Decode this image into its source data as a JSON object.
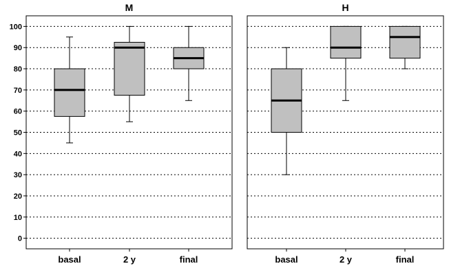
{
  "chart_data": {
    "type": "boxplot",
    "y_ticks": [
      0,
      10,
      20,
      30,
      40,
      50,
      60,
      70,
      80,
      90,
      100
    ],
    "ylim": [
      -5,
      105
    ],
    "grid": "horizontal dotted",
    "box_color": "#c0c0c0",
    "panels": [
      {
        "title": "M",
        "categories": [
          "basal",
          "2 y",
          "final"
        ],
        "boxes": [
          {
            "min": 45,
            "q1": 57.5,
            "median": 70,
            "q3": 80,
            "max": 95
          },
          {
            "min": 55,
            "q1": 67.5,
            "median": 90,
            "q3": 92.5,
            "max": 100
          },
          {
            "min": 65,
            "q1": 80,
            "median": 85,
            "q3": 90,
            "max": 100
          }
        ]
      },
      {
        "title": "H",
        "categories": [
          "basal",
          "2 y",
          "final"
        ],
        "boxes": [
          {
            "min": 30,
            "q1": 50,
            "median": 65,
            "q3": 80,
            "max": 90
          },
          {
            "min": 65,
            "q1": 85,
            "median": 90,
            "q3": 100,
            "max": 100
          },
          {
            "min": 80,
            "q1": 85,
            "median": 95,
            "q3": 100,
            "max": 100
          }
        ]
      }
    ]
  }
}
